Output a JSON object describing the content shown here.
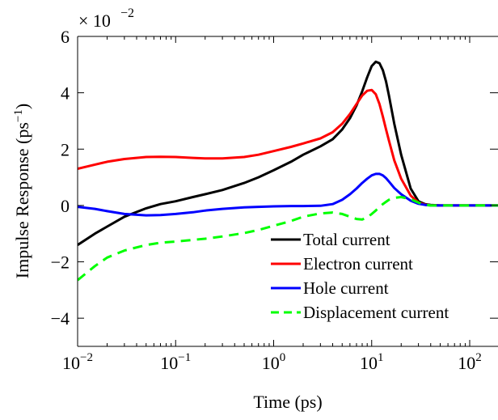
{
  "chart_data": {
    "type": "line",
    "title": "",
    "xlabel": "Time (ps)",
    "ylabel": "Impulse Response (ps",
    "ylabel_superscript": "−1",
    "ylabel_close": ")",
    "y_multiplier_base": "× 10",
    "y_multiplier_exponent": "−2",
    "x_scale": "log",
    "xlim": [
      0.01,
      316
    ],
    "ylim": [
      -5,
      6
    ],
    "grid": false,
    "legend_position": "bottom-right",
    "x_ticks": [
      {
        "value": 0.01,
        "base": "10",
        "exp": "−2"
      },
      {
        "value": 0.1,
        "base": "10",
        "exp": "−1"
      },
      {
        "value": 1,
        "base": "10",
        "exp": "0"
      },
      {
        "value": 10,
        "base": "10",
        "exp": "1"
      },
      {
        "value": 100,
        "base": "10",
        "exp": "2"
      }
    ],
    "y_ticks": [
      {
        "value": -4,
        "label": "−4"
      },
      {
        "value": -2,
        "label": "−2"
      },
      {
        "value": 0,
        "label": "0"
      },
      {
        "value": 2,
        "label": "2"
      },
      {
        "value": 4,
        "label": "4"
      },
      {
        "value": 6,
        "label": "6"
      }
    ],
    "series": [
      {
        "name": "Total current",
        "color": "#000000",
        "dash": "solid",
        "x": [
          0.01,
          0.015,
          0.02,
          0.03,
          0.05,
          0.07,
          0.1,
          0.15,
          0.2,
          0.3,
          0.5,
          0.7,
          1,
          1.5,
          2,
          3,
          4,
          5,
          6,
          7,
          8,
          9,
          10,
          11,
          12,
          13,
          14,
          15,
          17,
          20,
          25,
          30,
          35,
          40,
          50,
          60,
          80,
          100,
          150,
          200,
          316
        ],
        "y": [
          -1.4,
          -1.0,
          -0.75,
          -0.4,
          -0.1,
          0.05,
          0.15,
          0.3,
          0.4,
          0.55,
          0.8,
          1.0,
          1.25,
          1.55,
          1.8,
          2.1,
          2.35,
          2.7,
          3.1,
          3.55,
          4.05,
          4.55,
          4.95,
          5.1,
          5.05,
          4.8,
          4.4,
          3.9,
          2.9,
          1.8,
          0.6,
          0.15,
          0.05,
          0.02,
          0.0,
          0.0,
          0.0,
          0.0,
          0.0,
          0.0,
          0.0
        ]
      },
      {
        "name": "Electron current",
        "color": "#ff0000",
        "dash": "solid",
        "x": [
          0.01,
          0.015,
          0.02,
          0.03,
          0.05,
          0.07,
          0.1,
          0.15,
          0.2,
          0.3,
          0.5,
          0.7,
          1,
          1.5,
          2,
          3,
          4,
          5,
          6,
          7,
          8,
          9,
          10,
          11,
          12,
          13,
          14,
          15,
          17,
          20,
          25,
          30,
          35,
          40,
          50,
          60,
          80,
          100,
          150,
          200,
          316
        ],
        "y": [
          1.3,
          1.45,
          1.55,
          1.65,
          1.72,
          1.73,
          1.72,
          1.69,
          1.67,
          1.67,
          1.72,
          1.8,
          1.93,
          2.08,
          2.2,
          2.38,
          2.6,
          2.9,
          3.25,
          3.6,
          3.9,
          4.07,
          4.1,
          3.95,
          3.6,
          3.15,
          2.7,
          2.3,
          1.6,
          0.95,
          0.35,
          0.1,
          0.03,
          0.01,
          0.0,
          0.0,
          0.0,
          0.0,
          0.0,
          0.0,
          0.0
        ]
      },
      {
        "name": "Hole current",
        "color": "#0000ff",
        "dash": "solid",
        "x": [
          0.01,
          0.015,
          0.02,
          0.03,
          0.05,
          0.07,
          0.1,
          0.15,
          0.2,
          0.3,
          0.5,
          0.7,
          1,
          1.5,
          2,
          3,
          4,
          5,
          6,
          7,
          8,
          9,
          10,
          11,
          12,
          13,
          14,
          15,
          17,
          20,
          25,
          30,
          35,
          40,
          50,
          60,
          80,
          100,
          150,
          200,
          316
        ],
        "y": [
          -0.05,
          -0.12,
          -0.2,
          -0.3,
          -0.35,
          -0.34,
          -0.3,
          -0.24,
          -0.18,
          -0.12,
          -0.07,
          -0.05,
          -0.03,
          -0.02,
          -0.02,
          -0.01,
          0.05,
          0.2,
          0.4,
          0.6,
          0.8,
          0.95,
          1.07,
          1.12,
          1.12,
          1.07,
          0.97,
          0.85,
          0.62,
          0.4,
          0.17,
          0.06,
          0.02,
          0.0,
          0.0,
          0.0,
          0.0,
          0.0,
          0.0,
          0.0,
          0.0
        ]
      },
      {
        "name": "Displacement current",
        "color": "#00ff00",
        "dash": "dashed",
        "x": [
          0.01,
          0.015,
          0.02,
          0.03,
          0.05,
          0.07,
          0.1,
          0.15,
          0.2,
          0.3,
          0.5,
          0.7,
          1,
          1.5,
          2,
          3,
          4,
          5,
          6,
          7,
          8,
          9,
          10,
          11,
          12,
          13,
          14,
          15,
          17,
          20,
          25,
          30,
          35,
          40,
          50,
          60,
          80,
          100,
          150,
          200,
          316
        ],
        "y": [
          -2.65,
          -2.15,
          -1.85,
          -1.6,
          -1.4,
          -1.32,
          -1.28,
          -1.22,
          -1.18,
          -1.1,
          -0.98,
          -0.87,
          -0.72,
          -0.55,
          -0.4,
          -0.28,
          -0.25,
          -0.3,
          -0.4,
          -0.48,
          -0.5,
          -0.42,
          -0.3,
          -0.18,
          -0.05,
          0.05,
          0.13,
          0.2,
          0.27,
          0.3,
          0.22,
          0.1,
          0.03,
          0.0,
          0.0,
          0.0,
          0.0,
          0.0,
          0.0,
          0.0,
          0.0
        ]
      }
    ]
  }
}
